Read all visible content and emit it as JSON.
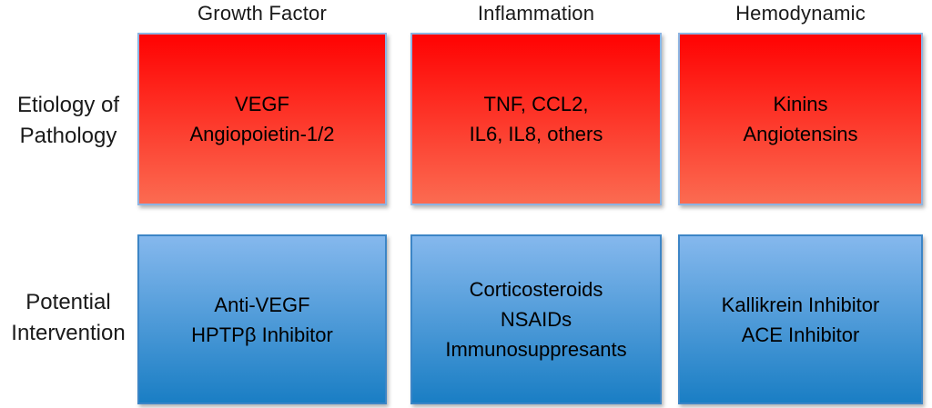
{
  "figure": {
    "row_labels": {
      "etiology": [
        "Etiology of",
        "Pathology"
      ],
      "intervention": [
        "Potential",
        "Intervention"
      ]
    },
    "columns": [
      {
        "header": "Growth Factor",
        "etiology_lines": [
          "VEGF",
          "Angiopoietin-1/2"
        ],
        "intervention_lines": [
          "Anti-VEGF",
          "HPTPβ Inhibitor"
        ]
      },
      {
        "header": "Inflammation",
        "etiology_lines": [
          "TNF, CCL2,",
          "IL6, IL8, others"
        ],
        "intervention_lines": [
          "Corticosteroids",
          "NSAIDs",
          "Immunosuppresants"
        ]
      },
      {
        "header": "Hemodynamic",
        "etiology_lines": [
          "Kinins",
          "Angiotensins"
        ],
        "intervention_lines": [
          "Kallikrein Inhibitor",
          "ACE Inhibitor"
        ]
      }
    ],
    "colors": {
      "etiology_top": "#ff0202",
      "etiology_bottom": "#fb6b51",
      "etiology_border": "#8db4e2",
      "intervention_top": "#85b8ed",
      "intervention_bottom": "#1a7ec4",
      "intervention_border": "#3c85c6",
      "text": "#000000",
      "background": "#ffffff"
    }
  }
}
